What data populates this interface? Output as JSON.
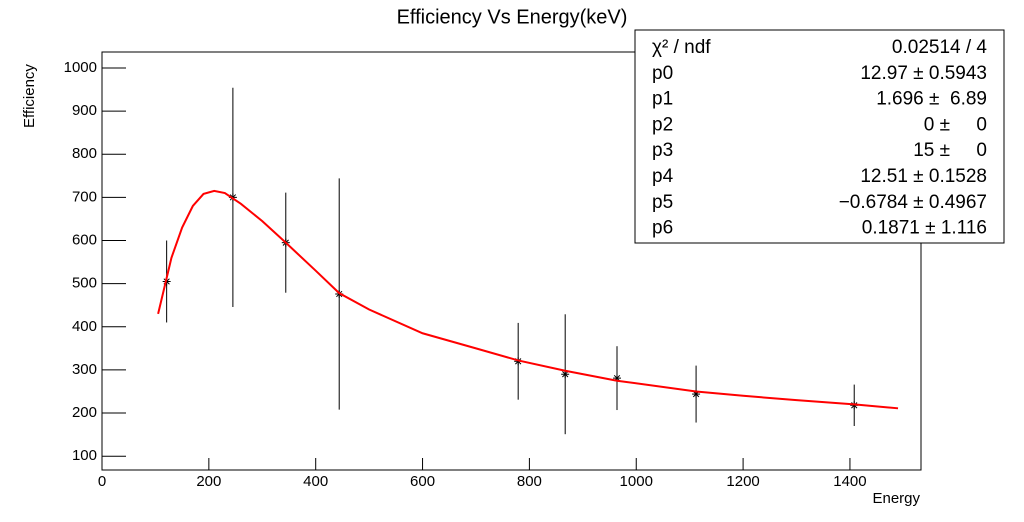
{
  "chart_data": {
    "type": "scatter",
    "title": "Efficiency Vs Energy(keV)",
    "x_label": "Energy",
    "y_label": "Efficiency",
    "xlim": [
      0,
      1533
    ],
    "ylim": [
      68,
      1037
    ],
    "xticks": [
      0,
      200,
      400,
      600,
      800,
      1000,
      1200,
      1400
    ],
    "yticks": [
      100,
      200,
      300,
      400,
      500,
      600,
      700,
      800,
      900,
      1000
    ],
    "series": [
      {
        "type": "scatter",
        "color": "#000000",
        "x": [
          121,
          245,
          344,
          444,
          779,
          867,
          964,
          1112,
          1408
        ],
        "values": [
          505,
          700,
          595,
          476,
          320,
          290,
          281,
          244,
          218
        ],
        "errors": [
          95,
          254,
          116,
          268,
          89,
          139,
          74,
          66,
          48
        ]
      },
      {
        "type": "line",
        "color": "#ff0000",
        "x": [
          105,
          130,
          150,
          170,
          190,
          210,
          230,
          260,
          300,
          344,
          400,
          444,
          500,
          600,
          700,
          779,
          867,
          964,
          1112,
          1200,
          1300,
          1408,
          1490
        ],
        "values": [
          430,
          560,
          630,
          680,
          708,
          715,
          710,
          685,
          645,
          595,
          530,
          478,
          440,
          385,
          350,
          322,
          298,
          275,
          250,
          240,
          230,
          220,
          211
        ]
      }
    ],
    "stats": [
      {
        "label": "χ² / ndf",
        "value": "0.02514 / 4"
      },
      {
        "label": "p0",
        "value": "12.97 ± 0.5943"
      },
      {
        "label": "p1",
        "value": "1.696 ±  6.89"
      },
      {
        "label": "p2",
        "value": "0 ±     0"
      },
      {
        "label": "p3",
        "value": "15 ±     0"
      },
      {
        "label": "p4",
        "value": "12.51 ± 0.1528"
      },
      {
        "label": "p5",
        "value": "−0.6784 ± 0.4967"
      },
      {
        "label": "p6",
        "value": "0.1871 ± 1.116"
      }
    ]
  }
}
